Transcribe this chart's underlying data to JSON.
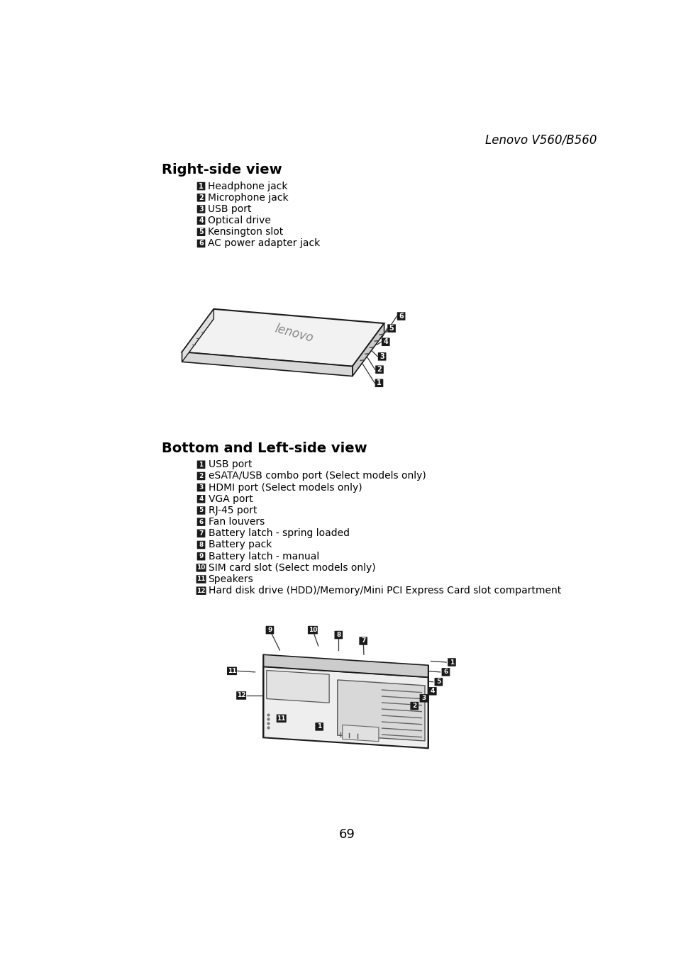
{
  "page_title": "Lenovo V560/B560",
  "page_number": "69",
  "section1_title": "Right-side view",
  "section1_items": [
    {
      "num": "1",
      "text": "Headphone jack"
    },
    {
      "num": "2",
      "text": "Microphone jack"
    },
    {
      "num": "3",
      "text": "USB port"
    },
    {
      "num": "4",
      "text": "Optical drive"
    },
    {
      "num": "5",
      "text": "Kensington slot"
    },
    {
      "num": "6",
      "text": "AC power adapter jack"
    }
  ],
  "section2_title": "Bottom and Left-side view",
  "section2_items": [
    {
      "num": "1",
      "text": "USB port"
    },
    {
      "num": "2",
      "text": "eSATA/USB combo port (Select models only)"
    },
    {
      "num": "3",
      "text": "HDMI port (Select models only)"
    },
    {
      "num": "4",
      "text": "VGA port"
    },
    {
      "num": "5",
      "text": "RJ-45 port"
    },
    {
      "num": "6",
      "text": "Fan louvers"
    },
    {
      "num": "7",
      "text": "Battery latch - spring loaded"
    },
    {
      "num": "8",
      "text": "Battery pack"
    },
    {
      "num": "9",
      "text": "Battery latch - manual"
    },
    {
      "num": "10",
      "text": "SIM card slot (Select models only)"
    },
    {
      "num": "11",
      "text": "Speakers"
    },
    {
      "num": "12",
      "text": "Hard disk drive (HDD)/Memory/Mini PCI Express Card slot compartment"
    }
  ],
  "bg_color": "#ffffff",
  "text_color": "#000000",
  "badge_bg": "#1a1a1a",
  "badge_fg": "#ffffff"
}
